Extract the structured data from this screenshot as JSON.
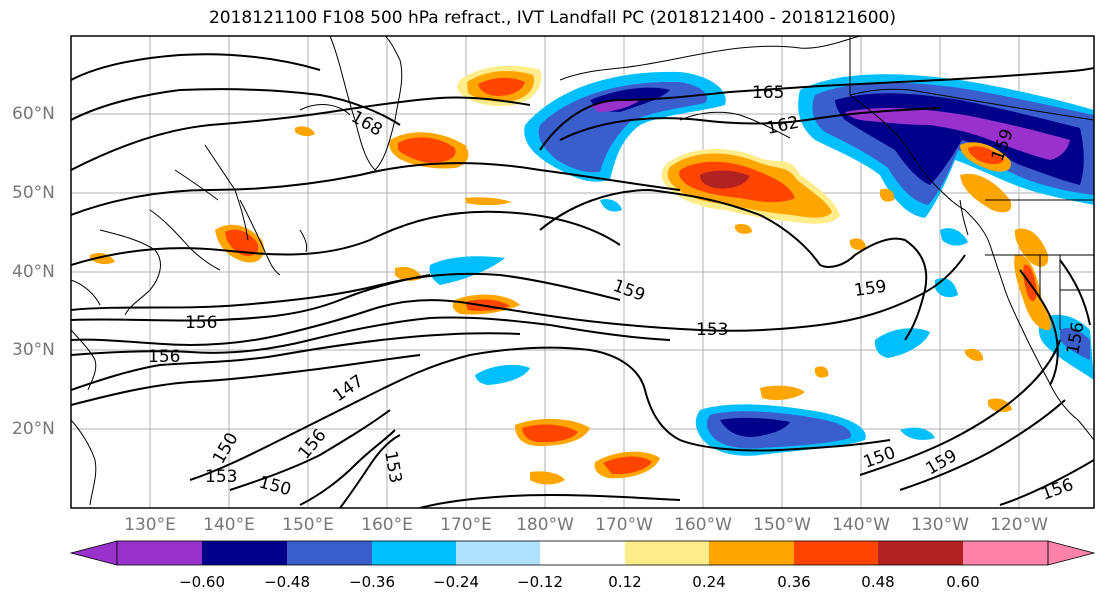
{
  "title": "2018121100 F108 500 hPa refract., IVT Landfall PC (2018121400 - 2018121600)",
  "lat_labels": [
    "60°N",
    "50°N",
    "40°N",
    "30°N",
    "20°N"
  ],
  "lon_labels": [
    "130°E",
    "140°E",
    "150°E",
    "160°E",
    "170°E",
    "180°W",
    "170°W",
    "160°W",
    "150°W",
    "140°W",
    "130°W",
    "120°W"
  ],
  "colorbar": {
    "colors": [
      "#9932cc",
      "#00008b",
      "#3a5fcd",
      "#00bfff",
      "#b0e2ff",
      "#ffffff",
      "#ffec8b",
      "#ffa500",
      "#ff4500",
      "#b22222",
      "#ff82ab"
    ],
    "tick_labels": [
      "−0.60",
      "−0.48",
      "−0.36",
      "−0.24",
      "−0.12",
      "0.12",
      "0.24",
      "0.36",
      "0.48",
      "0.60"
    ]
  },
  "contour_labels": [
    "168",
    "165",
    "162",
    "159",
    "159",
    "159",
    "156",
    "156",
    "153",
    "153",
    "150",
    "150",
    "147",
    "156",
    "159",
    "156",
    "150",
    "153",
    "156"
  ]
}
